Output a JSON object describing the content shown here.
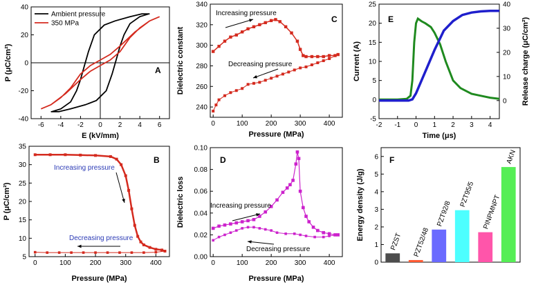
{
  "colors": {
    "black": "#000000",
    "red": "#d42a1e",
    "magenta": "#cc22cc",
    "green": "#1f8a1f",
    "blue": "#1f1fcc",
    "navy": "#1a1a8c",
    "bars": [
      "#4d4d4d",
      "#ff5a33",
      "#6a6aff",
      "#4dffff",
      "#ff55aa",
      "#55ee55"
    ]
  },
  "chart_data": [
    {
      "panel": "A",
      "type": "line",
      "xlabel": "E (kV/mm)",
      "ylabel": "P (μC/cm²)",
      "xlim": [
        -7,
        7
      ],
      "ylim": [
        -40,
        40
      ],
      "xticks": [
        -6,
        -4,
        -2,
        0,
        2,
        4,
        6
      ],
      "yticks": [
        -40,
        -20,
        0,
        20,
        40
      ],
      "legend": "top-left",
      "series": [
        {
          "name": "Ambient pressure",
          "color": "#000000",
          "x": [
            -4.9,
            -4.0,
            -3.0,
            -2.4,
            -2.0,
            -1.6,
            -1.2,
            -0.6,
            0.4,
            1.5,
            3.0,
            4.2,
            5.0,
            4.9,
            4.0,
            3.0,
            2.4,
            2.0,
            1.6,
            1.2,
            0.6,
            -0.4,
            -1.5,
            -3.0,
            -4.2,
            -5.0,
            -4.9
          ],
          "y": [
            -35,
            -33,
            -28,
            -20,
            -12,
            -2,
            8,
            20,
            27,
            30,
            33,
            35,
            35,
            35,
            33,
            28,
            20,
            12,
            2,
            -8,
            -20,
            -27,
            -30,
            -33,
            -35,
            -35,
            -35
          ]
        },
        {
          "name": "350 MPa",
          "color": "#d42a1e",
          "x": [
            -6.0,
            -5.0,
            -3.5,
            -2.0,
            -1.0,
            0.0,
            1.0,
            2.0,
            3.0,
            4.0,
            5.0,
            6.0,
            6.0,
            5.0,
            3.5,
            2.0,
            1.0,
            0.0,
            -1.0,
            -2.0,
            -3.0,
            -4.0,
            -5.0,
            -6.0,
            -6.0
          ],
          "y": [
            -33,
            -30,
            -22,
            -12,
            -6,
            -2,
            2,
            8,
            18,
            25,
            30,
            33,
            33,
            30,
            22,
            12,
            6,
            2,
            -2,
            -8,
            -18,
            -25,
            -30,
            -33,
            -33
          ]
        }
      ]
    },
    {
      "panel": "B",
      "type": "line",
      "xlabel": "Pressure (MPa)",
      "ylabel": "P (μC/cm²)",
      "xlim": [
        -20,
        445
      ],
      "ylim": [
        5,
        35
      ],
      "xticks": [
        0,
        100,
        200,
        300,
        400
      ],
      "yticks": [
        5,
        10,
        15,
        20,
        25,
        30,
        35
      ],
      "annotations": [
        "Increasing pressure",
        "Decreasing pressure"
      ],
      "series": [
        {
          "name": "Increasing pressure",
          "color": "#d42a1e",
          "x": [
            0,
            50,
            100,
            150,
            200,
            250,
            270,
            285,
            300,
            310,
            320,
            330,
            340,
            350,
            360,
            380,
            400,
            420,
            430
          ],
          "y": [
            32.7,
            32.7,
            32.7,
            32.6,
            32.5,
            32.2,
            31.5,
            30.0,
            27.0,
            23.0,
            18.0,
            13.5,
            10.5,
            9.0,
            8.2,
            7.5,
            7.0,
            6.8,
            6.5
          ]
        },
        {
          "name": "Decreasing pressure",
          "color": "#d42a1e",
          "x": [
            430,
            400,
            360,
            320,
            280,
            240,
            200,
            160,
            120,
            80,
            40,
            0
          ],
          "y": [
            6.5,
            6.2,
            6.1,
            6.1,
            6.1,
            6.1,
            6.1,
            6.1,
            6.1,
            6.1,
            6.1,
            6.2
          ]
        }
      ]
    },
    {
      "panel": "C",
      "type": "line",
      "xlabel": "Pressure (MPa)",
      "ylabel": "Dielectric constant",
      "xlim": [
        -10,
        445
      ],
      "ylim": [
        230,
        340
      ],
      "xticks": [
        0,
        100,
        200,
        300,
        400
      ],
      "yticks": [
        240,
        260,
        280,
        300,
        320,
        340
      ],
      "annotations": [
        "Increasing pressure",
        "Decreasing pressure"
      ],
      "series": [
        {
          "name": "Increasing pressure",
          "color": "#d42a1e",
          "x": [
            0,
            20,
            40,
            60,
            80,
            100,
            120,
            140,
            160,
            180,
            200,
            215,
            230,
            250,
            270,
            290,
            300,
            310,
            320,
            340,
            360,
            380,
            400,
            420,
            430
          ],
          "y": [
            294,
            299,
            304,
            308,
            310,
            313,
            316,
            318,
            320,
            322,
            324,
            325,
            323,
            318,
            312,
            304,
            296,
            290,
            289,
            289,
            289,
            289,
            290,
            290,
            291
          ]
        },
        {
          "name": "Decreasing pressure",
          "color": "#d42a1e",
          "x": [
            430,
            400,
            380,
            360,
            340,
            320,
            300,
            280,
            260,
            240,
            220,
            200,
            180,
            160,
            140,
            120,
            100,
            80,
            60,
            40,
            20,
            10,
            0
          ],
          "y": [
            291,
            287,
            285,
            283,
            281,
            279,
            278,
            276,
            274,
            272,
            270,
            268,
            266,
            264,
            263,
            262,
            258,
            256,
            254,
            251,
            247,
            242,
            236
          ]
        }
      ]
    },
    {
      "panel": "D",
      "type": "line",
      "xlabel": "Pressure (MPa)",
      "ylabel": "Dielectric loss",
      "xlim": [
        -10,
        445
      ],
      "ylim": [
        0.0,
        0.1
      ],
      "xticks": [
        0,
        100,
        200,
        300,
        400
      ],
      "yticks": [
        0.0,
        0.02,
        0.04,
        0.06,
        0.08,
        0.1
      ],
      "annotations": [
        "Increasing pressure",
        "Decreasing pressure"
      ],
      "series": [
        {
          "name": "Increasing pressure",
          "color": "#cc22cc",
          "x": [
            0,
            20,
            40,
            60,
            80,
            100,
            120,
            140,
            160,
            180,
            200,
            220,
            240,
            255,
            265,
            275,
            285,
            290,
            295,
            300,
            310,
            320,
            330,
            345,
            360,
            380,
            400,
            420,
            430
          ],
          "y": [
            0.026,
            0.028,
            0.029,
            0.03,
            0.031,
            0.032,
            0.033,
            0.034,
            0.037,
            0.041,
            0.046,
            0.052,
            0.059,
            0.063,
            0.066,
            0.07,
            0.085,
            0.096,
            0.09,
            0.06,
            0.045,
            0.037,
            0.032,
            0.027,
            0.024,
            0.022,
            0.021,
            0.02,
            0.02
          ]
        },
        {
          "name": "Decreasing pressure",
          "color": "#cc22cc",
          "x": [
            430,
            400,
            380,
            350,
            320,
            300,
            280,
            250,
            220,
            200,
            180,
            160,
            140,
            120,
            100,
            80,
            60,
            40,
            20,
            0
          ],
          "y": [
            0.02,
            0.019,
            0.018,
            0.018,
            0.019,
            0.02,
            0.021,
            0.021,
            0.022,
            0.024,
            0.025,
            0.026,
            0.027,
            0.027,
            0.026,
            0.024,
            0.022,
            0.02,
            0.018,
            0.015
          ]
        }
      ]
    },
    {
      "panel": "E",
      "type": "line",
      "xlabel": "Time (μs)",
      "ylabel": "Current (A)",
      "ylabel_right": "Release charge (μC/cm²)",
      "xlim": [
        -2,
        4.5
      ],
      "ylim": [
        -5,
        25
      ],
      "ylim_right": [
        -7.5,
        40
      ],
      "xticks": [
        -2,
        -1,
        0,
        1,
        2,
        3,
        4
      ],
      "yticks": [
        -5,
        0,
        5,
        10,
        15,
        20,
        25
      ],
      "yticks_right": [
        0,
        10,
        20,
        30,
        40
      ],
      "series": [
        {
          "name": "Current (A)",
          "color": "#1f8a1f",
          "axis": "left",
          "x": [
            -2.0,
            -1.0,
            -0.5,
            -0.3,
            -0.2,
            -0.1,
            0.0,
            0.1,
            0.3,
            0.5,
            0.8,
            1.0,
            1.3,
            1.6,
            2.0,
            2.4,
            3.0,
            3.5,
            4.0,
            4.5
          ],
          "y": [
            0.0,
            0.0,
            0.2,
            1.0,
            5.0,
            15.0,
            20.0,
            21.2,
            20.5,
            20.0,
            19.0,
            17.5,
            14.5,
            10.0,
            5.0,
            3.0,
            1.5,
            1.0,
            0.5,
            0.2
          ]
        },
        {
          "name": "Release charge",
          "color": "#1f1fcc",
          "axis": "right",
          "x": [
            -2.0,
            -1.0,
            -0.4,
            -0.2,
            0.0,
            0.5,
            1.0,
            1.5,
            2.0,
            2.5,
            3.0,
            3.5,
            4.0,
            4.5
          ],
          "y": [
            0.0,
            0.0,
            0.0,
            0.5,
            3.0,
            12.0,
            21.0,
            29.0,
            33.0,
            35.5,
            36.5,
            37.0,
            37.2,
            37.2
          ]
        }
      ]
    },
    {
      "panel": "F",
      "type": "bar",
      "xlabel": "",
      "ylabel": "Energy density (J/g)",
      "ylim": [
        0,
        6.5
      ],
      "yticks": [
        0,
        1,
        2,
        3,
        4,
        5,
        6
      ],
      "categories": [
        "PZST",
        "PZT52/48",
        "PZT92/8",
        "PZT95/5",
        "PINPMNPT",
        "AKN"
      ],
      "values": [
        0.5,
        0.12,
        1.85,
        2.95,
        1.7,
        5.4
      ]
    }
  ]
}
